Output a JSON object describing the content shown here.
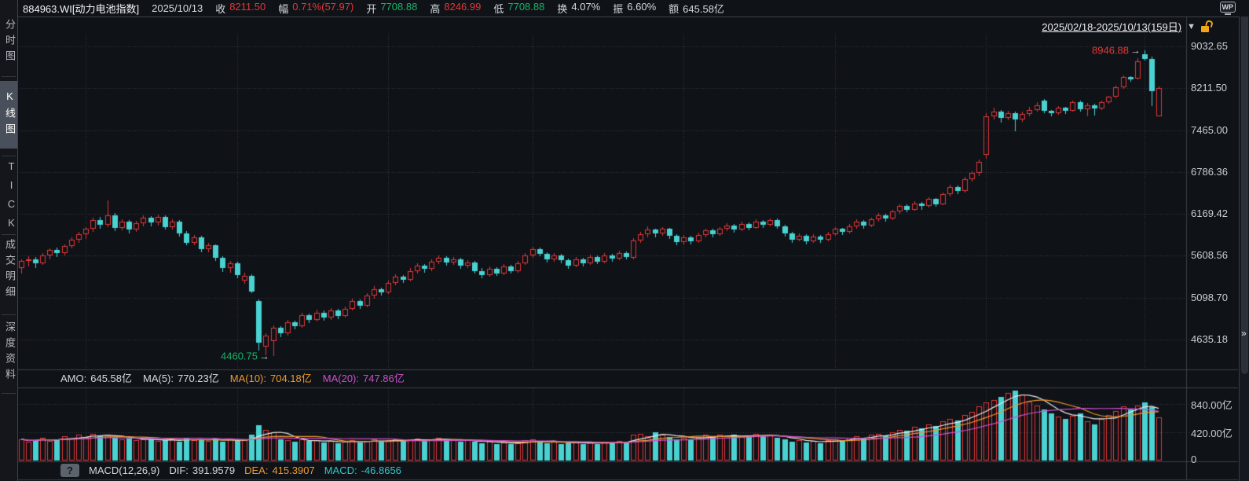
{
  "header": {
    "title": "884963.WI[动力电池指数]",
    "date": "2025/10/13",
    "fields": [
      {
        "label": "收",
        "value": "8211.50",
        "color": "#e23939"
      },
      {
        "label": "幅",
        "value": "0.71%(57.97)",
        "color": "#e23939"
      },
      {
        "label": "开",
        "value": "7708.88",
        "color": "#17b567"
      },
      {
        "label": "高",
        "value": "8246.99",
        "color": "#e23939"
      },
      {
        "label": "低",
        "value": "7708.88",
        "color": "#17b567"
      },
      {
        "label": "换",
        "value": "4.07%",
        "color": "#d6d9de"
      },
      {
        "label": "振",
        "value": "6.60%",
        "color": "#d6d9de"
      },
      {
        "label": "额",
        "value": "645.58亿",
        "color": "#d6d9de"
      }
    ],
    "wp_icon": "WP"
  },
  "toolbar": {
    "date_range": "2025/02/18-2025/10/13(159日)",
    "dropdown_icon": "▼"
  },
  "sidebar": {
    "items": [
      {
        "label": "分时图",
        "selected": false
      },
      {
        "label": "K线图",
        "selected": true
      },
      {
        "label": "TICK",
        "selected": false
      },
      {
        "label": "成交明细",
        "selected": false
      },
      {
        "label": "深度资料",
        "selected": false
      }
    ]
  },
  "volume_panel": {
    "legend": [
      {
        "label": "AMO:",
        "value": "645.58亿",
        "color": "#d6d9de"
      },
      {
        "label": "MA(5):",
        "value": "770.23亿",
        "color": "#d6d9de"
      },
      {
        "label": "MA(10):",
        "value": "704.18亿",
        "color": "#ef9a2e"
      },
      {
        "label": "MA(20):",
        "value": "747.86亿",
        "color": "#cf4fcf"
      }
    ]
  },
  "macd_panel": {
    "help_icon": "?",
    "name": "MACD(12,26,9)",
    "fields": [
      {
        "label": "DIF:",
        "value": "391.9579",
        "color": "#d6d9de"
      },
      {
        "label": "DEA:",
        "value": "415.3907",
        "color": "#ef9a2e"
      },
      {
        "label": "MACD:",
        "value": "-46.8656",
        "color": "#2ec9c9"
      }
    ]
  },
  "window": {
    "expand_icon": "»"
  },
  "colors": {
    "up": "#e23939",
    "down": "#4ad1d1",
    "grid": "#3a3e46",
    "border": "#3e424a",
    "ma5": "#e8e8e8",
    "ma10": "#ef9a2e",
    "ma20": "#cf4fcf",
    "annotation_high": "#e23939",
    "annotation_low": "#17b567",
    "arrow": "#c9ced6"
  },
  "chart_data": {
    "type": "candlestick",
    "title": "884963.WI 动力电池指数 日K线",
    "date_range": "2025/02/18-2025/10/13",
    "days": 159,
    "scale": "log",
    "price_axis": {
      "labels": [
        "9032.65",
        "8211.50",
        "7465.00",
        "6786.36",
        "6169.42",
        "5608.56",
        "5098.70",
        "4635.18"
      ],
      "values": [
        9032.65,
        8211.5,
        7465.0,
        6786.36,
        6169.42,
        5608.56,
        5098.7,
        4635.18
      ]
    },
    "volume_axis": {
      "labels": [
        "840.00亿",
        "420.00亿",
        "0"
      ],
      "values": [
        840,
        420,
        0
      ],
      "unit": "亿"
    },
    "grid_days": [
      9,
      30,
      51,
      71,
      92,
      113,
      134,
      156
    ],
    "annotations": [
      {
        "text": "8946.88",
        "day": 156,
        "price": 8946.88,
        "color": "#e23939"
      },
      {
        "text": "4460.75",
        "day": 35,
        "price": 4460.75,
        "color": "#17b567"
      }
    ],
    "last_day": {
      "open": 7708.88,
      "high": 8246.99,
      "low": 7708.88,
      "close": 8211.5,
      "change_pct": 0.71,
      "change": 57.97,
      "turnover_pct": 4.07,
      "amplitude_pct": 6.6,
      "amount": "645.58亿"
    },
    "candles": [
      [
        5450,
        5565,
        5385,
        5540
      ],
      [
        5540,
        5600,
        5470,
        5560
      ],
      [
        5560,
        5590,
        5450,
        5510
      ],
      [
        5510,
        5640,
        5490,
        5610
      ],
      [
        5610,
        5700,
        5560,
        5680
      ],
      [
        5680,
        5710,
        5590,
        5640
      ],
      [
        5640,
        5760,
        5610,
        5730
      ],
      [
        5730,
        5850,
        5700,
        5820
      ],
      [
        5820,
        5920,
        5780,
        5890
      ],
      [
        5890,
        5990,
        5830,
        5960
      ],
      [
        5960,
        6120,
        5920,
        6080
      ],
      [
        6080,
        6130,
        5970,
        6020
      ],
      [
        6020,
        6360,
        5990,
        6150
      ],
      [
        6150,
        6180,
        5930,
        5980
      ],
      [
        5980,
        6090,
        5940,
        6060
      ],
      [
        6060,
        6080,
        5900,
        5950
      ],
      [
        5950,
        6070,
        5920,
        6040
      ],
      [
        6040,
        6150,
        6000,
        6120
      ],
      [
        6120,
        6140,
        6000,
        6050
      ],
      [
        6050,
        6160,
        6010,
        6130
      ],
      [
        6130,
        6150,
        5950,
        5990
      ],
      [
        5990,
        6090,
        5950,
        6060
      ],
      [
        6060,
        6080,
        5860,
        5900
      ],
      [
        5900,
        5930,
        5740,
        5780
      ],
      [
        5780,
        5880,
        5750,
        5850
      ],
      [
        5850,
        5870,
        5650,
        5690
      ],
      [
        5690,
        5780,
        5650,
        5740
      ],
      [
        5740,
        5760,
        5540,
        5580
      ],
      [
        5580,
        5600,
        5410,
        5450
      ],
      [
        5450,
        5540,
        5400,
        5510
      ],
      [
        5510,
        5530,
        5330,
        5370
      ],
      [
        5300,
        5400,
        5260,
        5360
      ],
      [
        5360,
        5380,
        5150,
        5170
      ],
      [
        5060,
        5080,
        4520,
        4600
      ],
      [
        4560,
        4700,
        4470,
        4680
      ],
      [
        4620,
        4790,
        4460.75,
        4760
      ],
      [
        4760,
        4780,
        4660,
        4700
      ],
      [
        4700,
        4850,
        4680,
        4820
      ],
      [
        4820,
        4840,
        4740,
        4780
      ],
      [
        4780,
        4930,
        4760,
        4900
      ],
      [
        4900,
        4920,
        4810,
        4850
      ],
      [
        4850,
        4960,
        4830,
        4930
      ],
      [
        4930,
        4950,
        4840,
        4870
      ],
      [
        4870,
        4980,
        4850,
        4950
      ],
      [
        4950,
        4970,
        4860,
        4890
      ],
      [
        4890,
        5000,
        4870,
        4970
      ],
      [
        4970,
        5090,
        4950,
        5060
      ],
      [
        5060,
        5080,
        4970,
        5010
      ],
      [
        5010,
        5150,
        4990,
        5120
      ],
      [
        5120,
        5230,
        5090,
        5200
      ],
      [
        5200,
        5220,
        5120,
        5160
      ],
      [
        5160,
        5300,
        5140,
        5270
      ],
      [
        5270,
        5380,
        5240,
        5350
      ],
      [
        5350,
        5370,
        5270,
        5310
      ],
      [
        5310,
        5450,
        5290,
        5420
      ],
      [
        5420,
        5510,
        5390,
        5480
      ],
      [
        5480,
        5500,
        5400,
        5440
      ],
      [
        5440,
        5560,
        5420,
        5530
      ],
      [
        5530,
        5610,
        5500,
        5580
      ],
      [
        5580,
        5600,
        5480,
        5520
      ],
      [
        5520,
        5590,
        5490,
        5560
      ],
      [
        5560,
        5580,
        5440,
        5480
      ],
      [
        5480,
        5550,
        5450,
        5520
      ],
      [
        5520,
        5540,
        5390,
        5420
      ],
      [
        5420,
        5450,
        5330,
        5370
      ],
      [
        5370,
        5470,
        5350,
        5440
      ],
      [
        5440,
        5460,
        5360,
        5390
      ],
      [
        5390,
        5500,
        5370,
        5470
      ],
      [
        5470,
        5490,
        5390,
        5420
      ],
      [
        5420,
        5540,
        5400,
        5510
      ],
      [
        5510,
        5640,
        5490,
        5610
      ],
      [
        5610,
        5720,
        5580,
        5690
      ],
      [
        5690,
        5710,
        5600,
        5630
      ],
      [
        5630,
        5650,
        5520,
        5560
      ],
      [
        5560,
        5640,
        5530,
        5610
      ],
      [
        5610,
        5630,
        5510,
        5550
      ],
      [
        5550,
        5570,
        5440,
        5480
      ],
      [
        5480,
        5590,
        5460,
        5560
      ],
      [
        5560,
        5580,
        5470,
        5510
      ],
      [
        5510,
        5620,
        5490,
        5590
      ],
      [
        5590,
        5610,
        5500,
        5530
      ],
      [
        5530,
        5640,
        5510,
        5610
      ],
      [
        5610,
        5630,
        5530,
        5570
      ],
      [
        5570,
        5670,
        5550,
        5640
      ],
      [
        5640,
        5660,
        5560,
        5590
      ],
      [
        5580,
        5840,
        5560,
        5810
      ],
      [
        5810,
        5920,
        5780,
        5890
      ],
      [
        5890,
        6000,
        5850,
        5950
      ],
      [
        5950,
        5970,
        5850,
        5900
      ],
      [
        5900,
        5990,
        5870,
        5960
      ],
      [
        5960,
        5980,
        5830,
        5870
      ],
      [
        5870,
        5890,
        5750,
        5790
      ],
      [
        5790,
        5880,
        5760,
        5850
      ],
      [
        5850,
        5870,
        5760,
        5800
      ],
      [
        5800,
        5910,
        5780,
        5880
      ],
      [
        5880,
        5970,
        5850,
        5940
      ],
      [
        5940,
        5960,
        5850,
        5890
      ],
      [
        5890,
        5990,
        5870,
        5960
      ],
      [
        5960,
        6040,
        5930,
        6010
      ],
      [
        6010,
        6030,
        5910,
        5950
      ],
      [
        5950,
        6060,
        5930,
        6030
      ],
      [
        6030,
        6050,
        5940,
        5980
      ],
      [
        5980,
        6090,
        5960,
        6060
      ],
      [
        6060,
        6080,
        5980,
        6020
      ],
      [
        6020,
        6110,
        6000,
        6080
      ],
      [
        6080,
        6100,
        5960,
        6000
      ],
      [
        6000,
        6020,
        5860,
        5900
      ],
      [
        5900,
        5920,
        5780,
        5820
      ],
      [
        5820,
        5900,
        5800,
        5870
      ],
      [
        5870,
        5890,
        5760,
        5800
      ],
      [
        5800,
        5890,
        5780,
        5860
      ],
      [
        5860,
        5880,
        5780,
        5820
      ],
      [
        5820,
        5920,
        5800,
        5890
      ],
      [
        5890,
        5990,
        5870,
        5960
      ],
      [
        5960,
        5980,
        5880,
        5920
      ],
      [
        5920,
        6030,
        5900,
        6000
      ],
      [
        6000,
        6090,
        5970,
        6060
      ],
      [
        6060,
        6080,
        5970,
        6010
      ],
      [
        6010,
        6120,
        5990,
        6090
      ],
      [
        6090,
        6180,
        6060,
        6150
      ],
      [
        6150,
        6170,
        6060,
        6100
      ],
      [
        6100,
        6230,
        6080,
        6200
      ],
      [
        6200,
        6310,
        6170,
        6280
      ],
      [
        6280,
        6300,
        6190,
        6230
      ],
      [
        6230,
        6350,
        6210,
        6320
      ],
      [
        6320,
        6340,
        6230,
        6280
      ],
      [
        6280,
        6410,
        6260,
        6380
      ],
      [
        6380,
        6400,
        6270,
        6310
      ],
      [
        6310,
        6480,
        6290,
        6450
      ],
      [
        6450,
        6590,
        6420,
        6560
      ],
      [
        6560,
        6580,
        6450,
        6500
      ],
      [
        6500,
        6710,
        6480,
        6680
      ],
      [
        6680,
        6800,
        6640,
        6770
      ],
      [
        6770,
        6980,
        6730,
        6950
      ],
      [
        7060,
        7760,
        7000,
        7710
      ],
      [
        7710,
        7860,
        7650,
        7790
      ],
      [
        7790,
        7810,
        7600,
        7680
      ],
      [
        7680,
        7800,
        7640,
        7760
      ],
      [
        7760,
        7780,
        7450,
        7650
      ],
      [
        7650,
        7780,
        7610,
        7740
      ],
      [
        7740,
        7870,
        7700,
        7820
      ],
      [
        7820,
        7950,
        7780,
        7900
      ],
      [
        7990,
        8010,
        7760,
        7800
      ],
      [
        7800,
        7820,
        7700,
        7760
      ],
      [
        7760,
        7880,
        7730,
        7850
      ],
      [
        7850,
        7870,
        7740,
        7800
      ],
      [
        7800,
        7990,
        7780,
        7960
      ],
      [
        7960,
        7980,
        7790,
        7830
      ],
      [
        7830,
        7940,
        7700,
        7900
      ],
      [
        7900,
        7920,
        7720,
        7840
      ],
      [
        7840,
        7980,
        7820,
        7960
      ],
      [
        7960,
        8070,
        7930,
        8050
      ],
      [
        8050,
        8260,
        8020,
        8230
      ],
      [
        8230,
        8450,
        8200,
        8420
      ],
      [
        8420,
        8440,
        8330,
        8380
      ],
      [
        8400,
        8800,
        8380,
        8730
      ],
      [
        8880,
        8946.88,
        8750,
        8780
      ],
      [
        8780,
        8820,
        7890,
        8153.53
      ],
      [
        7708.88,
        8246.99,
        7708.88,
        8211.5
      ]
    ],
    "volumes": [
      320,
      280,
      300,
      340,
      290,
      310,
      360,
      330,
      380,
      350,
      400,
      370,
      390,
      340,
      310,
      330,
      300,
      320,
      310,
      290,
      300,
      320,
      280,
      340,
      300,
      320,
      290,
      330,
      280,
      310,
      290,
      300,
      380,
      520,
      460,
      420,
      320,
      300,
      280,
      310,
      290,
      300,
      270,
      290,
      260,
      280,
      300,
      270,
      290,
      310,
      280,
      300,
      320,
      290,
      310,
      330,
      290,
      320,
      340,
      300,
      310,
      280,
      300,
      280,
      260,
      290,
      250,
      270,
      240,
      260,
      300,
      320,
      290,
      260,
      280,
      250,
      260,
      280,
      250,
      270,
      240,
      280,
      260,
      290,
      270,
      380,
      400,
      360,
      420,
      390,
      350,
      320,
      340,
      310,
      350,
      380,
      360,
      390,
      340,
      380,
      350,
      370,
      400,
      360,
      390,
      340,
      310,
      280,
      300,
      270,
      290,
      260,
      300,
      320,
      300,
      340,
      360,
      330,
      380,
      400,
      370,
      420,
      460,
      440,
      500,
      480,
      540,
      510,
      580,
      620,
      590,
      680,
      720,
      800,
      860,
      900,
      950,
      1000,
      1040,
      980,
      880,
      820,
      760,
      700,
      650,
      620,
      660,
      700,
      580,
      540,
      620,
      680,
      740,
      800,
      760,
      820,
      860,
      790,
      645.58
    ]
  }
}
